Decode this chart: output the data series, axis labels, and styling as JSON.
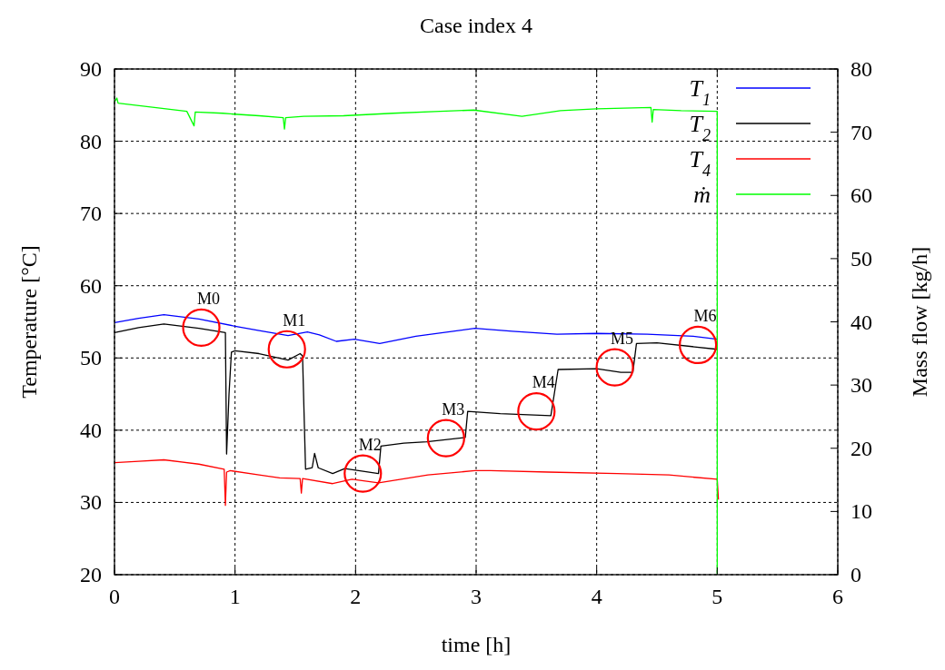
{
  "chart_data": {
    "type": "line",
    "title": "Case index 4",
    "xlabel": "time [h]",
    "ylabel": "Temperature [°C]",
    "y2label": "Mass flow [kg/h]",
    "xlim": [
      0,
      6
    ],
    "xticks": [
      0,
      1,
      2,
      3,
      4,
      5,
      6
    ],
    "ylim": [
      20,
      90
    ],
    "yticks": [
      20,
      30,
      40,
      50,
      60,
      70,
      80,
      90
    ],
    "y2lim": [
      0,
      80
    ],
    "y2ticks": [
      0,
      10,
      20,
      30,
      40,
      50,
      60,
      70,
      80
    ],
    "grid": true,
    "legend": "top right",
    "line_style": "solid",
    "marker": "none",
    "series": [
      {
        "name": "T$_{1}$",
        "color": "#0000ff",
        "x": [
          0,
          0.2,
          0.41,
          0.7,
          1.0,
          1.2,
          1.44,
          1.6,
          1.7,
          1.84,
          1.99,
          2.2,
          2.5,
          2.99,
          3.3,
          3.67,
          4.0,
          4.42,
          4.8,
          5.0
        ],
        "values": [
          54.9,
          55.5,
          56.0,
          55.4,
          54.4,
          53.8,
          53.1,
          53.6,
          53.2,
          52.3,
          52.6,
          52.0,
          53.0,
          54.1,
          53.7,
          53.3,
          53.4,
          53.3,
          53.0,
          52.6
        ]
      },
      {
        "name": "T$_{2}$",
        "color": "#000000",
        "x": [
          0,
          0.2,
          0.41,
          0.7,
          0.92,
          0.93,
          0.95,
          0.97,
          1.0,
          1.2,
          1.44,
          1.54,
          1.56,
          1.585,
          1.64,
          1.66,
          1.69,
          1.81,
          1.91,
          2.19,
          2.21,
          2.4,
          2.59,
          2.91,
          2.93,
          3.2,
          3.62,
          3.68,
          4.0,
          4.2,
          4.3,
          4.33,
          4.5,
          5.0
        ],
        "values": [
          53.5,
          54.2,
          54.7,
          54.1,
          53.5,
          36.7,
          45.0,
          50.8,
          51.0,
          50.6,
          49.7,
          50.6,
          50.3,
          34.6,
          34.8,
          36.8,
          34.8,
          34.0,
          34.7,
          34.0,
          37.8,
          38.2,
          38.4,
          39.0,
          42.6,
          42.3,
          42.0,
          48.4,
          48.5,
          48.0,
          48.0,
          52.0,
          52.1,
          51.2
        ]
      },
      {
        "name": "T$_{4}$",
        "color": "#ff0000",
        "x": [
          0,
          0.2,
          0.41,
          0.7,
          0.91,
          0.92,
          0.93,
          0.96,
          1.2,
          1.37,
          1.54,
          1.55,
          1.56,
          1.81,
          1.97,
          2.19,
          2.6,
          2.99,
          3.12,
          3.6,
          4.17,
          4.6,
          5.0,
          5.01
        ],
        "values": [
          35.5,
          35.7,
          35.9,
          35.3,
          34.6,
          29.6,
          34.2,
          34.4,
          33.8,
          33.4,
          33.3,
          31.3,
          33.3,
          32.6,
          33.2,
          32.7,
          33.8,
          34.4,
          34.4,
          34.2,
          34.0,
          33.8,
          33.2,
          30.4
        ]
      },
      {
        "name": "ṁ",
        "color": "#00ff00",
        "axis": "y2",
        "x": [
          0,
          0.02,
          0.03,
          0.3,
          0.6,
          0.66,
          0.67,
          0.9,
          0.96,
          1.2,
          1.4,
          1.41,
          1.42,
          1.57,
          1.9,
          2.31,
          2.7,
          2.98,
          3.38,
          3.7,
          4.0,
          4.45,
          4.46,
          4.47,
          4.7,
          5.0,
          5.0
        ],
        "values": [
          74.8,
          75.4,
          74.6,
          74.0,
          73.3,
          71.0,
          73.2,
          73.0,
          72.9,
          72.6,
          72.3,
          70.5,
          72.3,
          72.5,
          72.6,
          73.0,
          73.3,
          73.5,
          72.5,
          73.4,
          73.7,
          73.9,
          71.6,
          73.6,
          73.4,
          73.3,
          0
        ]
      }
    ],
    "annotations": [
      {
        "text": "M0",
        "x": 0.72,
        "y": 54.2
      },
      {
        "text": "M1",
        "x": 1.43,
        "y": 51.2
      },
      {
        "text": "M2",
        "x": 2.06,
        "y": 34
      },
      {
        "text": "M3",
        "x": 2.75,
        "y": 38.9
      },
      {
        "text": "M4",
        "x": 3.5,
        "y": 42.6
      },
      {
        "text": "M5",
        "x": 4.15,
        "y": 48.7
      },
      {
        "text": "M6",
        "x": 4.84,
        "y": 51.8
      }
    ]
  }
}
